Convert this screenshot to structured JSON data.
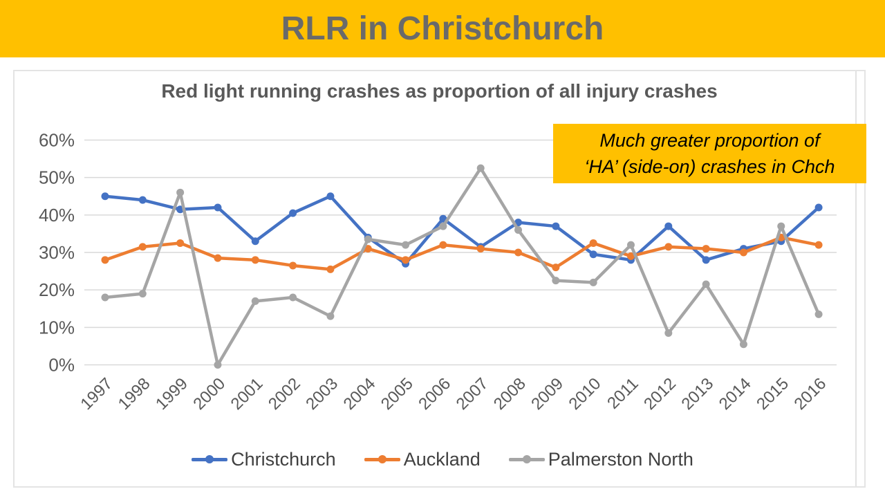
{
  "banner": {
    "title": "RLR in Christchurch",
    "bg_color": "#FFC000",
    "text_color": "#6A6A6A"
  },
  "annotation": {
    "line1": "Much greater proportion of",
    "line2": "‘HA’ (side-on) crashes in Chch",
    "bg_color": "#FFC000",
    "text_color": "#000000"
  },
  "axis": {
    "label_color": "#595959",
    "gridline_color": "#D9D9D9"
  },
  "chart_data": {
    "type": "line",
    "title": "Red light running crashes as proportion of all injury crashes",
    "xlabel": "",
    "ylabel": "",
    "ylim": [
      0,
      60
    ],
    "y_tick_step": 10,
    "y_tick_labels": [
      "0%",
      "10%",
      "20%",
      "30%",
      "40%",
      "50%",
      "60%"
    ],
    "grid": "horizontal",
    "legend_position": "bottom",
    "categories": [
      "1997",
      "1998",
      "1999",
      "2000",
      "2001",
      "2002",
      "2003",
      "2004",
      "2005",
      "2006",
      "2007",
      "2008",
      "2009",
      "2010",
      "2011",
      "2012",
      "2013",
      "2014",
      "2015",
      "2016"
    ],
    "series": [
      {
        "name": "Christchurch",
        "color": "#4472C4",
        "values": [
          45,
          44,
          41.5,
          42,
          33,
          40.5,
          45,
          34,
          27,
          39,
          31.5,
          38,
          37,
          29.5,
          28,
          37,
          28,
          31,
          33,
          42
        ]
      },
      {
        "name": "Auckland",
        "color": "#ED7D31",
        "values": [
          28,
          31.5,
          32.5,
          28.5,
          28,
          26.5,
          25.5,
          31,
          28,
          32,
          31,
          30,
          26,
          32.5,
          29,
          31.5,
          31,
          30,
          34,
          32
        ]
      },
      {
        "name": "Palmerston North",
        "color": "#A5A5A5",
        "values": [
          18,
          19,
          46,
          0,
          17,
          18,
          13,
          33.5,
          32,
          37,
          52.5,
          36,
          22.5,
          22,
          32,
          8.5,
          21.5,
          5.5,
          37,
          13.5
        ]
      }
    ]
  }
}
